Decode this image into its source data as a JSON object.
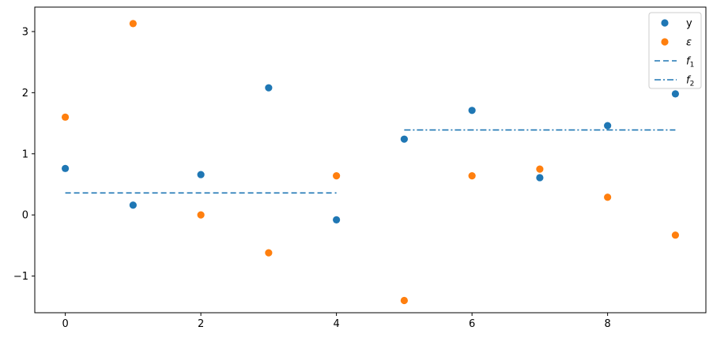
{
  "chart_data": {
    "type": "scatter",
    "xlim": [
      -0.45,
      9.45
    ],
    "ylim": [
      -1.6,
      3.4
    ],
    "x_ticks": [
      0,
      2,
      4,
      6,
      8
    ],
    "y_ticks": [
      -1,
      0,
      1,
      2,
      3
    ],
    "grid": false,
    "legend_position": "top-right",
    "series": [
      {
        "name": "y",
        "kind": "points",
        "color": "#1f77b4",
        "x": [
          0,
          1,
          2,
          3,
          4,
          5,
          6,
          7,
          8,
          9
        ],
        "y": [
          0.76,
          0.16,
          0.66,
          2.08,
          -0.08,
          1.24,
          1.71,
          0.61,
          1.46,
          1.98
        ]
      },
      {
        "name": "ε",
        "kind": "points",
        "color": "#ff7f0e",
        "x": [
          0,
          1,
          2,
          3,
          4,
          5,
          6,
          7,
          8,
          9
        ],
        "y": [
          1.6,
          3.13,
          0.0,
          -0.62,
          0.64,
          -1.4,
          0.64,
          0.75,
          0.29,
          -0.33
        ]
      },
      {
        "name": "f",
        "name_sub": "1",
        "kind": "line",
        "dash": "dashed",
        "color": "#1f77b4",
        "x": [
          0,
          4
        ],
        "y": [
          0.36,
          0.36
        ]
      },
      {
        "name": "f",
        "name_sub": "2",
        "kind": "line",
        "dash": "dashdot",
        "color": "#1f77b4",
        "x": [
          5,
          9
        ],
        "y": [
          1.39,
          1.39
        ]
      }
    ]
  }
}
